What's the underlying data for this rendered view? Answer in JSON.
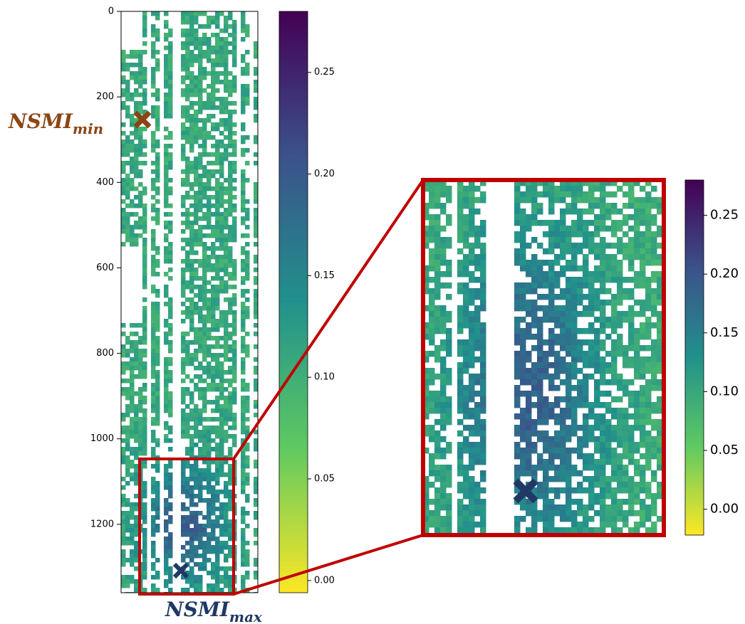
{
  "chart_data": [
    {
      "type": "heatmap",
      "ylim": [
        1360,
        0
      ],
      "yticks": [
        0,
        200,
        400,
        600,
        800,
        1000,
        1200
      ],
      "colorbar": {
        "clim": [
          -0.006,
          0.28
        ],
        "ticks": [
          {
            "value": 0,
            "label": "0.00"
          },
          0.05,
          {
            "value": 0.1,
            "label": "0.10"
          },
          0.15,
          {
            "value": 0.2,
            "label": "0.20"
          },
          0.25
        ]
      },
      "annotations": [
        {
          "text": "NSMI",
          "sub": "min",
          "color": "#8b4513"
        },
        {
          "text": "NSMI",
          "sub": "max",
          "color": "#1f3864"
        }
      ]
    },
    {
      "type": "heatmap",
      "colorbar": {
        "clim": [
          -0.022,
          0.28
        ],
        "ticks": [
          {
            "value": 0,
            "label": "0.00"
          },
          0.05,
          {
            "value": 0.1,
            "label": "0.10"
          },
          0.15,
          {
            "value": 0.2,
            "label": "0.20"
          },
          0.25
        ]
      }
    }
  ]
}
